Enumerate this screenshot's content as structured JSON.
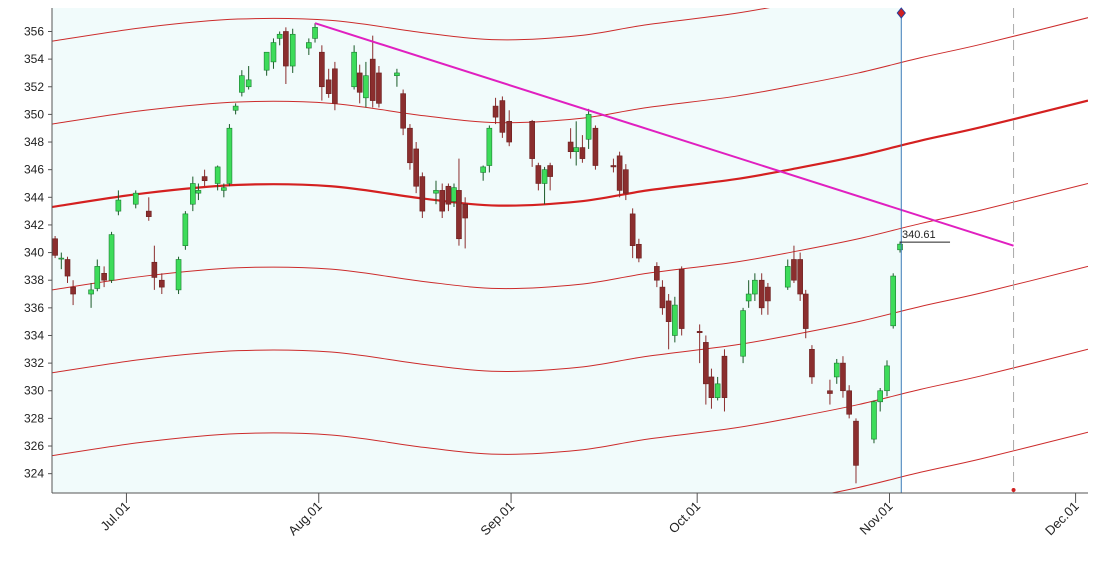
{
  "chart_data": {
    "type": "candlestick",
    "up_color": "#3ddc5a",
    "down_color": "#8b2e2e",
    "x": [
      170.5,
      171.5,
      172.5,
      173.4,
      176.3,
      177.3,
      178.4,
      179.6,
      180.7,
      183.5,
      185.6,
      186.5,
      187.7,
      190.4,
      191.5,
      192.7,
      193.6,
      194.6,
      196.7,
      197.7,
      198.6,
      199.6,
      200.6,
      201.7,
      204.6,
      205.7,
      206.7,
      207.7,
      208.8,
      211.4,
      212.4,
      213.5,
      214.6,
      215.6,
      218.7,
      219.6,
      220.6,
      221.7,
      222.7,
      225.6,
      226.6,
      227.7,
      228.7,
      229.7,
      231.9,
      232.9,
      233.9,
      234.8,
      235.6,
      236.6,
      239.5,
      240.5,
      241.5,
      242.6,
      243.7,
      247.4,
      248.4,
      249.4,
      250.3,
      253.6,
      254.5,
      255.5,
      256.5,
      257.6,
      260.5,
      261.5,
      262.5,
      263.6,
      264.6,
      267.5,
      268.4,
      269.4,
      270.4,
      271.5,
      274.4,
      275.4,
      276.3,
      277.3,
      278.4,
      281.4,
      282.3,
      283.3,
      284.4,
      285.4,
      288.6,
      289.6,
      290.6,
      291.5,
      292.5,
      295.4,
      296.5,
      297.5,
      298.5,
      299.6,
      302.5,
      303.5,
      304.6,
      305.6,
      306.7
    ],
    "open": [
      341,
      339.6,
      339.5,
      337.5,
      337,
      337.4,
      338.5,
      338,
      343,
      343.5,
      343,
      339.3,
      338,
      337.3,
      340.5,
      343.5,
      344.3,
      345.5,
      345,
      344.5,
      345,
      350.3,
      351.6,
      352,
      353.2,
      353.8,
      355.5,
      356,
      353.5,
      354.8,
      355.5,
      354.5,
      352.5,
      353.3,
      352,
      353,
      351.2,
      354,
      353,
      352.8,
      351.5,
      349,
      347.5,
      345.5,
      344.3,
      344.5,
      344.8,
      343.7,
      344.5,
      343.5,
      345.8,
      346.3,
      350.6,
      351,
      349.5,
      349.5,
      346.3,
      345,
      346.3,
      348,
      347.3,
      347.6,
      348.2,
      349,
      346.3,
      347,
      346,
      342.8,
      340.6,
      339,
      337.5,
      336.5,
      334,
      338.8,
      334.3,
      333.5,
      331,
      329.5,
      332.5,
      332.5,
      336.5,
      337,
      338,
      337.5,
      337.5,
      339.5,
      339.5,
      337,
      333,
      330,
      331,
      332,
      330,
      327.8,
      326.5,
      329.2,
      330,
      334.7,
      340.2
    ],
    "high": [
      341.2,
      340,
      339.7,
      338,
      337.8,
      339.5,
      339,
      341.5,
      344.5,
      344.5,
      344,
      340.5,
      338.5,
      339.7,
      343,
      345.5,
      345,
      346,
      346.3,
      345,
      349.3,
      350.8,
      353.2,
      353.5,
      354.5,
      355.5,
      356,
      356.3,
      356.2,
      355.5,
      356.6,
      355,
      353.3,
      353.8,
      355,
      353.6,
      353.8,
      355.7,
      353.5,
      353.3,
      351.8,
      349.3,
      348,
      345.8,
      345.2,
      345,
      345,
      345,
      346.8,
      344,
      346.3,
      349.2,
      351.2,
      351.3,
      350.3,
      349.6,
      346.5,
      346.2,
      346.5,
      349,
      349.5,
      348.5,
      350.4,
      349.2,
      346.8,
      347.3,
      346.4,
      343.2,
      341,
      339.3,
      338,
      337,
      336.8,
      339,
      334.8,
      334,
      331.6,
      331,
      333,
      336,
      338,
      338.5,
      338.5,
      337.8,
      339.5,
      340.5,
      340,
      337.3,
      333.3,
      330.8,
      332.3,
      332.5,
      330.4,
      328,
      329.3,
      330.2,
      332.2,
      338.5,
      340.8
    ],
    "low": [
      339.6,
      338.8,
      337.8,
      336.2,
      336,
      337.2,
      337.5,
      337.8,
      342.7,
      343.2,
      342.3,
      337.3,
      337,
      337,
      340.2,
      343,
      343.8,
      344.8,
      344.5,
      344,
      344.8,
      350,
      351.3,
      351.8,
      352.8,
      353.3,
      355,
      352.2,
      353,
      354.3,
      355.2,
      351,
      351.2,
      350.3,
      351.8,
      350.8,
      350.5,
      350.5,
      350.5,
      352,
      348.5,
      346,
      344.3,
      342.5,
      343.5,
      342.5,
      343,
      343.3,
      340.5,
      340.3,
      345.2,
      345.8,
      349.3,
      348.3,
      347.7,
      346.2,
      344.5,
      343.5,
      344.5,
      346.8,
      346.3,
      346.5,
      347.5,
      346,
      345.8,
      344,
      343.8,
      339.6,
      339.3,
      337.5,
      335.5,
      333,
      333.5,
      334,
      332,
      329,
      328.7,
      329.3,
      328.5,
      332,
      336,
      336.5,
      335.5,
      335.5,
      337.3,
      337.8,
      336.5,
      333.8,
      330.5,
      329,
      330.5,
      329.5,
      328,
      323.3,
      326.2,
      328.5,
      329.6,
      334.5,
      340
    ],
    "close": [
      339.8,
      339.6,
      338.3,
      337,
      337.3,
      339,
      338,
      341.3,
      343.8,
      344.3,
      342.6,
      338.2,
      337.5,
      339.5,
      342.8,
      345,
      344.5,
      345.2,
      346.2,
      344.7,
      349,
      350.6,
      352.8,
      352.5,
      354.5,
      355.2,
      355.8,
      353.5,
      355.8,
      355.2,
      356.3,
      352,
      351.5,
      350.8,
      354.5,
      351.6,
      352.8,
      351,
      350.8,
      353,
      349,
      346.5,
      344.8,
      343,
      344.5,
      343,
      343.5,
      344.7,
      341,
      342.5,
      346.2,
      349,
      349.8,
      348.7,
      348,
      346.8,
      345,
      346,
      345.5,
      347.3,
      347.6,
      346.8,
      350,
      346.3,
      346.2,
      344.5,
      344.3,
      340.5,
      339.6,
      338,
      336,
      335,
      336.2,
      334.5,
      334.2,
      330.5,
      329.5,
      330.5,
      329.5,
      335.8,
      337,
      338,
      336,
      336.5,
      339,
      338,
      337,
      334.5,
      331,
      329.8,
      332,
      330,
      328.3,
      324.6,
      329.2,
      330,
      331.8,
      338.3,
      340.61
    ],
    "channels": [
      {
        "color": "#cc2b2b",
        "width": 1,
        "x": [
          170,
          185,
          200,
          215,
          230,
          242,
          255,
          266,
          280,
          290,
          300,
          310,
          320,
          337
        ],
        "values": [
          355.3,
          356.3,
          356.9,
          356.8,
          355.9,
          355.4,
          355.7,
          356.5,
          357.3,
          358.1,
          359,
          360.1,
          361.1,
          363
        ]
      },
      {
        "color": "#cc2b2b",
        "width": 1,
        "x": [
          170,
          185,
          200,
          215,
          230,
          242,
          255,
          266,
          280,
          290,
          300,
          310,
          320,
          337
        ],
        "values": [
          349.3,
          350.3,
          350.9,
          350.8,
          349.9,
          349.4,
          349.7,
          350.5,
          351.3,
          352.1,
          353,
          354.1,
          355.1,
          357
        ]
      },
      {
        "color": "#d42020",
        "width": 2.2,
        "x": [
          170,
          185,
          200,
          215,
          230,
          242,
          255,
          266,
          280,
          290,
          300,
          310,
          320,
          337
        ],
        "values": [
          343.3,
          344.3,
          344.9,
          344.8,
          343.9,
          343.4,
          343.7,
          344.5,
          345.3,
          346.1,
          347,
          348.1,
          349.1,
          351
        ]
      },
      {
        "color": "#cc2b2b",
        "width": 1,
        "x": [
          170,
          185,
          200,
          215,
          230,
          242,
          255,
          266,
          280,
          290,
          300,
          310,
          320,
          337
        ],
        "values": [
          337.3,
          338.3,
          338.9,
          338.8,
          337.9,
          337.4,
          337.7,
          338.5,
          339.3,
          340.1,
          341,
          342.1,
          343.1,
          345
        ]
      },
      {
        "color": "#cc2b2b",
        "width": 1,
        "x": [
          170,
          185,
          200,
          215,
          230,
          242,
          255,
          266,
          280,
          290,
          300,
          310,
          320,
          337
        ],
        "values": [
          331.3,
          332.3,
          332.9,
          332.8,
          331.9,
          331.4,
          331.7,
          332.5,
          333.3,
          334.1,
          335,
          336.1,
          337.1,
          339
        ]
      },
      {
        "color": "#cc2b2b",
        "width": 1,
        "x": [
          170,
          185,
          200,
          215,
          230,
          242,
          255,
          266,
          280,
          290,
          300,
          310,
          320,
          337
        ],
        "values": [
          325.3,
          326.3,
          326.9,
          326.8,
          325.9,
          325.4,
          325.7,
          326.5,
          327.3,
          328.1,
          329,
          330.1,
          331.1,
          333
        ]
      },
      {
        "color": "#cc2b2b",
        "width": 1,
        "x": [
          170,
          185,
          200,
          215,
          230,
          242,
          255,
          266,
          280,
          290,
          300,
          310,
          320,
          337
        ],
        "values": [
          319.3,
          320.3,
          320.9,
          320.8,
          319.9,
          319.4,
          319.7,
          320.5,
          321.3,
          322.1,
          323,
          324.1,
          325.1,
          327
        ]
      }
    ],
    "trendline": {
      "color": "#e020c0",
      "x": [
        212.4,
        325
      ],
      "values": [
        356.6,
        340.5
      ]
    },
    "cursor_x": 306.9,
    "projection_x": 325,
    "xlim": [
      170,
      337
    ],
    "ylim": [
      322.6,
      357.7
    ],
    "xticks": [
      {
        "value": 182,
        "label": "Jul.01"
      },
      {
        "value": 213,
        "label": "Aug.01"
      },
      {
        "value": 244,
        "label": "Sep.01"
      },
      {
        "value": 274,
        "label": "Oct.01"
      },
      {
        "value": 305,
        "label": "Nov.01"
      },
      {
        "value": 335,
        "label": "Dec.01"
      }
    ],
    "yticks": [
      324,
      326,
      328,
      330,
      332,
      334,
      336,
      338,
      340,
      342,
      344,
      346,
      348,
      350,
      352,
      354,
      356
    ]
  }
}
